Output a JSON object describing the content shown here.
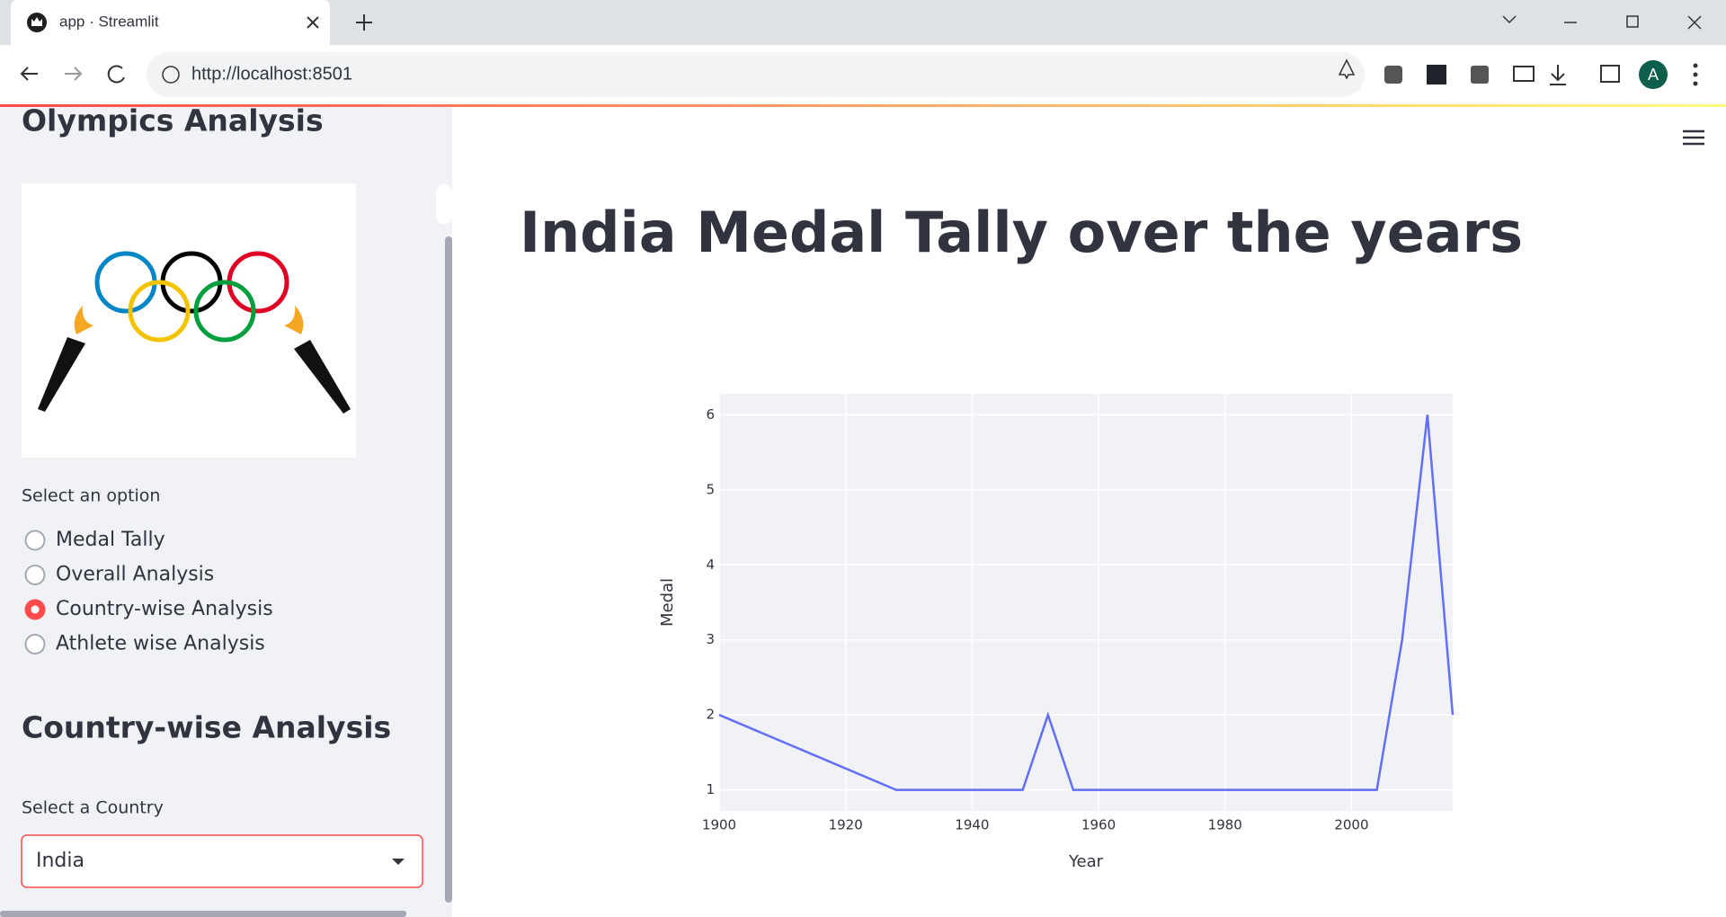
{
  "browser": {
    "tab_title": "app · Streamlit",
    "url": "http://localhost:8501",
    "avatar": "A"
  },
  "sidebar": {
    "title": "Olympics Analysis",
    "radio_label": "Select an option",
    "options": [
      "Medal Tally",
      "Overall Analysis",
      "Country-wise Analysis",
      "Athlete wise Analysis"
    ],
    "selected": 2,
    "section_title": "Country-wise Analysis",
    "select_label": "Select a Country",
    "select_value": "India"
  },
  "main": {
    "title": "India Medal Tally over the years"
  },
  "chart_data": {
    "type": "line",
    "x_label": "Year",
    "y_label": "Medal",
    "x": [
      1900,
      1928,
      1932,
      1936,
      1948,
      1952,
      1956,
      1960,
      1964,
      1968,
      1972,
      1980,
      1996,
      2000,
      2004,
      2008,
      2012,
      2016
    ],
    "series": [
      {
        "name": "Medal",
        "color": "#636efa",
        "values": [
          2,
          1,
          1,
          1,
          1,
          2,
          1,
          1,
          1,
          1,
          1,
          1,
          1,
          1,
          1,
          3,
          6,
          2
        ]
      }
    ],
    "xlim": [
      1900,
      2016
    ],
    "xticks": [
      1900,
      1920,
      1940,
      1960,
      1980,
      2000
    ],
    "ylim": [
      0.72,
      6.28
    ],
    "yticks": [
      1,
      2,
      3,
      4,
      5,
      6
    ],
    "grid": true
  }
}
